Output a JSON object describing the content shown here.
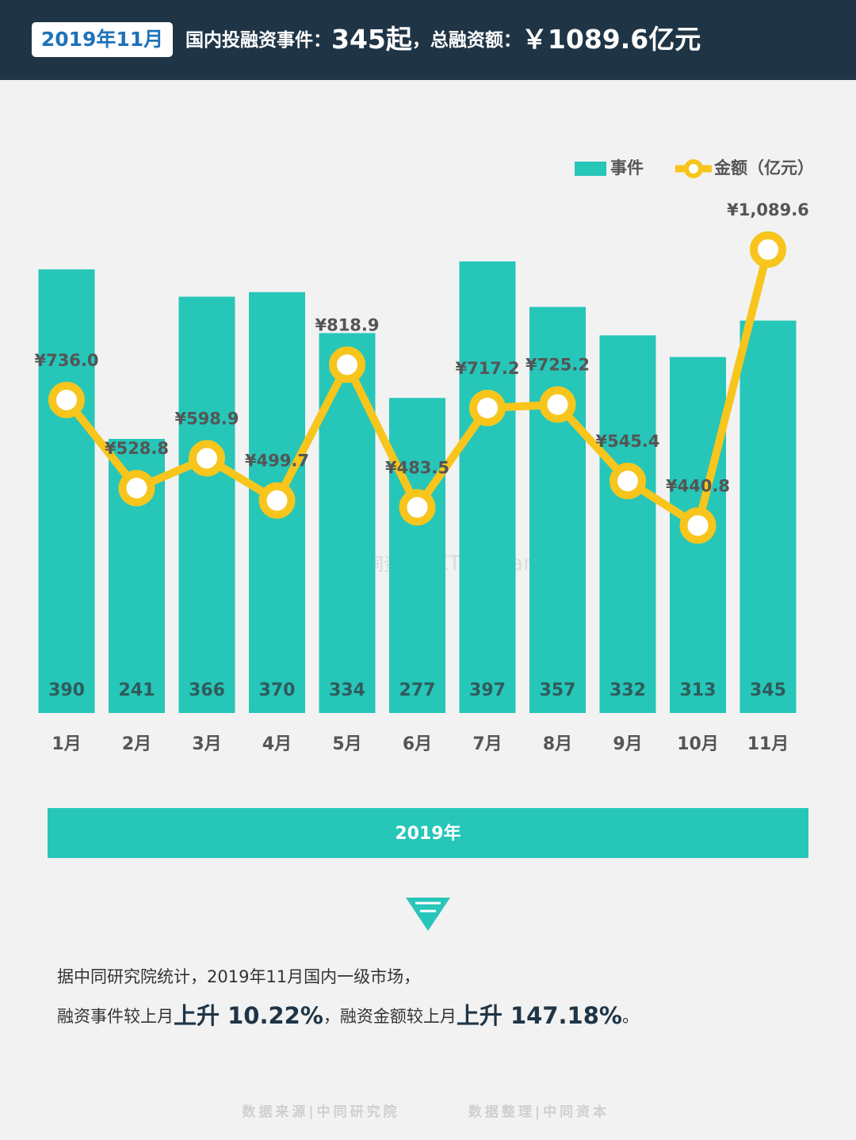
{
  "header": {
    "badge": "2019年11月",
    "segments": [
      "国内投融资事件：",
      "345起",
      "，总融资额：",
      "￥1089.6亿元"
    ]
  },
  "chart_data": {
    "type": "bar-line",
    "categories": [
      "1月",
      "2月",
      "3月",
      "4月",
      "5月",
      "6月",
      "7月",
      "8月",
      "9月",
      "10月",
      "11月"
    ],
    "series": [
      {
        "name": "事件",
        "color": "#26c6b9",
        "type": "bar",
        "values": [
          390,
          241,
          366,
          370,
          334,
          277,
          397,
          357,
          332,
          313,
          345
        ]
      },
      {
        "name": "金额（亿元）",
        "color": "#f7c51b",
        "type": "line",
        "values": [
          736.0,
          528.8,
          598.9,
          499.7,
          818.9,
          483.5,
          717.2,
          725.2,
          545.4,
          440.8,
          1089.6
        ],
        "value_labels": [
          "¥736.0",
          "¥528.8",
          "¥598.9",
          "¥499.7",
          "¥818.9",
          "¥483.5",
          "¥717.2",
          "¥725.2",
          "¥545.4",
          "¥440.8",
          "¥1,089.6"
        ]
      }
    ],
    "x_label": "2019年",
    "watermark": [
      "中同资本",
      "ZTResearch"
    ]
  },
  "summary": {
    "line1": "据中同研究院统计，2019年11月国内一级市场，",
    "line2": [
      "融资事件较上月",
      "上升 10.22%",
      "，融资金额较上月",
      "上升 147.18%",
      "。"
    ]
  },
  "footer": [
    "数据来源|中同研究院",
    "数据整理|中同资本"
  ]
}
